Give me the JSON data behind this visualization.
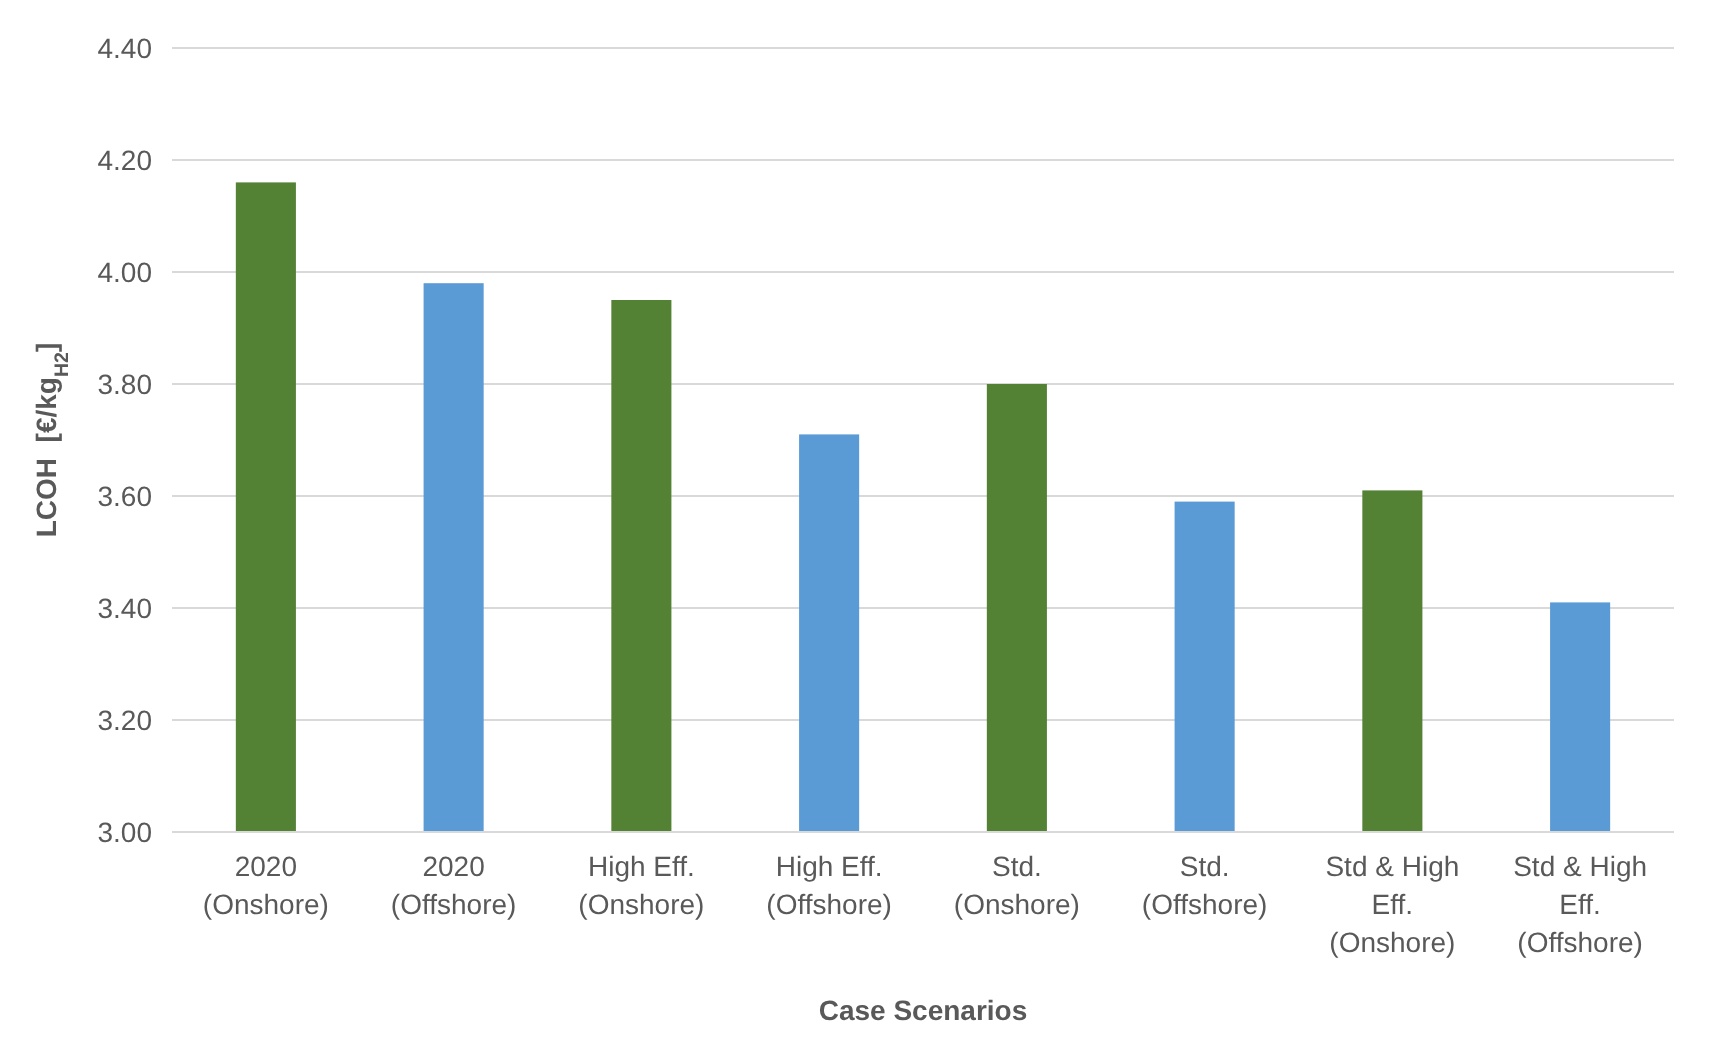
{
  "chart_data": {
    "type": "bar",
    "xlabel": "Case Scenarios",
    "ylabel": "LCOH  [€/kg$_{H2}$]",
    "categories": [
      "2020\n(Onshore)",
      "2020\n(Offshore)",
      "High Eff.\n(Onshore)",
      "High Eff.\n(Offshore)",
      "Std.\n(Onshore)",
      "Std.\n(Offshore)",
      "Std & High\nEff.\n(Onshore)",
      "Std & High\nEff.\n(Offshore)"
    ],
    "values": [
      4.16,
      3.98,
      3.95,
      3.71,
      3.8,
      3.59,
      3.61,
      3.41
    ],
    "colors": [
      "#548235",
      "#5b9bd5",
      "#548235",
      "#5b9bd5",
      "#548235",
      "#5b9bd5",
      "#548235",
      "#5b9bd5"
    ],
    "ylim": [
      3.0,
      4.4
    ],
    "yticks": [
      {
        "value": 3.0,
        "label": "3.00"
      },
      {
        "value": 3.2,
        "label": "3.20"
      },
      {
        "value": 3.4,
        "label": "3.40"
      },
      {
        "value": 3.6,
        "label": "3.60"
      },
      {
        "value": 3.8,
        "label": "3.80"
      },
      {
        "value": 4.0,
        "label": "4.00"
      },
      {
        "value": 4.2,
        "label": "4.20"
      },
      {
        "value": 4.4,
        "label": "4.40"
      }
    ],
    "grid": "y"
  }
}
